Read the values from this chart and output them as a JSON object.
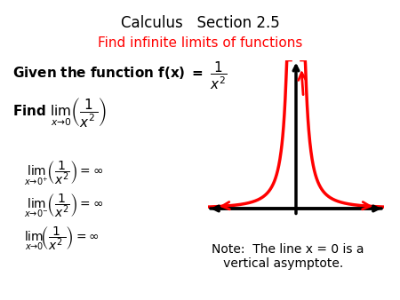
{
  "title_line1": "Calculus   Section 2.5",
  "title_line2": "Find infinite limits of functions",
  "title_color": "black",
  "subtitle_color": "red",
  "background_color": "white",
  "given_text": "Given the function f(x) = ",
  "find_text": "Find ",
  "note_text": "Note:  The line x = 0 is a\n   vertical asymptote.",
  "limit_results": [
    {
      "label": "$\\lim_{x \\to 0+}\\left(\\dfrac{1}{x^2}\\right) = \\infty$"
    },
    {
      "label": "$\\lim_{x \\to 0-}\\left(\\dfrac{1}{x^2}\\right) = \\infty$"
    },
    {
      "label": "$\\lim_{x \\to 0}\\left(\\dfrac{1}{x^2}\\right) = \\infty$"
    }
  ],
  "curve_color": "red",
  "axes_color": "black",
  "graph_xlim": [
    -3,
    3
  ],
  "graph_ylim": [
    -0.5,
    10
  ]
}
